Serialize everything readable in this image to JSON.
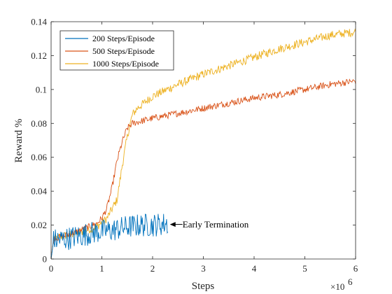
{
  "chart_data": {
    "type": "line",
    "title": "",
    "xlabel": "Steps",
    "ylabel": "Reward %",
    "x_exponent_label": "×10",
    "x_exponent_power": "6",
    "xlim": [
      0,
      6
    ],
    "ylim": [
      0,
      0.14
    ],
    "xticks": [
      0,
      1,
      2,
      3,
      4,
      5,
      6
    ],
    "yticks": [
      0,
      0.02,
      0.04,
      0.06,
      0.08,
      0.1,
      0.12,
      0.14
    ],
    "xtick_labels": [
      "0",
      "1",
      "2",
      "3",
      "4",
      "5",
      "6"
    ],
    "ytick_labels": [
      "0",
      "0.02",
      "0.04",
      "0.06",
      "0.08",
      "0.1",
      "0.12",
      "0.14"
    ],
    "grid": false,
    "legend_position": "top-left",
    "annotation": {
      "text": "Early Termination",
      "x": 2.3,
      "y": 0.02
    },
    "series": [
      {
        "name": "200 Steps/Episode",
        "color": "#0072BD",
        "noise": 0.007,
        "x": [
          0,
          0.05,
          0.3,
          0.6,
          0.9,
          1.2,
          1.5,
          1.8,
          2.0,
          2.3
        ],
        "y": [
          0.0,
          0.011,
          0.012,
          0.014,
          0.016,
          0.017,
          0.019,
          0.02,
          0.02,
          0.021
        ]
      },
      {
        "name": "500 Steps/Episode",
        "color": "#D95319",
        "noise": 0.002,
        "x": [
          0,
          0.05,
          0.3,
          0.6,
          0.9,
          1.0,
          1.1,
          1.2,
          1.3,
          1.4,
          1.5,
          1.6,
          2.0,
          2.5,
          3.0,
          3.5,
          4.0,
          4.5,
          5.0,
          5.5,
          6.0
        ],
        "y": [
          0.0,
          0.012,
          0.014,
          0.017,
          0.021,
          0.024,
          0.03,
          0.042,
          0.058,
          0.069,
          0.077,
          0.08,
          0.083,
          0.086,
          0.089,
          0.092,
          0.095,
          0.097,
          0.1,
          0.103,
          0.105
        ]
      },
      {
        "name": "1000 Steps/Episode",
        "color": "#EDB120",
        "noise": 0.0025,
        "x": [
          0,
          0.05,
          0.3,
          0.6,
          0.9,
          1.1,
          1.3,
          1.4,
          1.5,
          1.6,
          1.7,
          2.0,
          2.5,
          3.0,
          3.5,
          4.0,
          4.5,
          5.0,
          5.5,
          6.0
        ],
        "y": [
          0.0,
          0.012,
          0.014,
          0.016,
          0.019,
          0.024,
          0.035,
          0.055,
          0.072,
          0.085,
          0.089,
          0.096,
          0.103,
          0.109,
          0.114,
          0.119,
          0.124,
          0.128,
          0.132,
          0.134
        ]
      }
    ]
  }
}
